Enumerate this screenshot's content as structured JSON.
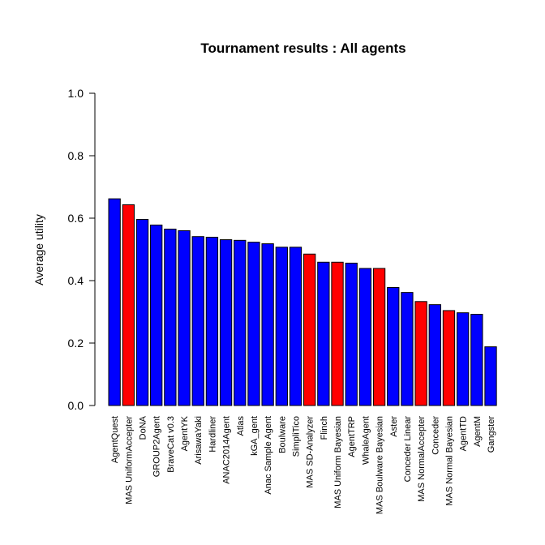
{
  "chart_data": {
    "type": "bar",
    "title": "Tournament results : All agents",
    "xlabel": "",
    "ylabel": "Average utility",
    "ylim": [
      0,
      1.0
    ],
    "yticks": [
      0.0,
      0.2,
      0.4,
      0.6,
      0.8,
      1.0
    ],
    "ytick_labels": [
      "0.0",
      "0.2",
      "0.4",
      "0.6",
      "0.8",
      "1.0"
    ],
    "grid": false,
    "legend": "none",
    "colors": {
      "agent": "#0000ff",
      "mas": "#ff0000",
      "border": "#000000"
    },
    "categories": [
      "AgentQuest",
      "MAS UniformAccepter",
      "DoNA",
      "GROUP2Agent",
      "BraveCat v0.3",
      "AgentYK",
      "ArisawaYaki",
      "Hardliner",
      "ANAC2014Agent",
      "Atlas",
      "kGA_gent",
      "Anac Sample Agent",
      "Boulware",
      "SimpliTico",
      "MAS SD-Analyzer",
      "Flinch",
      "MAS Uniform Bayesian",
      "AgentTRP",
      "WhaleAgent",
      "MAS Boulware Bayesian",
      "Aster",
      "Conceder Linear",
      "MAS NormalAccepter",
      "Conceder",
      "MAS Normal Bayesian",
      "AgentTD",
      "AgentM",
      "Gangster"
    ],
    "values": [
      0.662,
      0.643,
      0.596,
      0.578,
      0.565,
      0.56,
      0.541,
      0.539,
      0.531,
      0.529,
      0.523,
      0.518,
      0.507,
      0.507,
      0.485,
      0.459,
      0.459,
      0.456,
      0.439,
      0.439,
      0.378,
      0.362,
      0.333,
      0.323,
      0.304,
      0.297,
      0.292,
      0.188
    ],
    "bar_color_keys": [
      "agent",
      "mas",
      "agent",
      "agent",
      "agent",
      "agent",
      "agent",
      "agent",
      "agent",
      "agent",
      "agent",
      "agent",
      "agent",
      "agent",
      "mas",
      "agent",
      "mas",
      "agent",
      "agent",
      "mas",
      "agent",
      "agent",
      "mas",
      "agent",
      "mas",
      "agent",
      "agent",
      "agent"
    ]
  }
}
